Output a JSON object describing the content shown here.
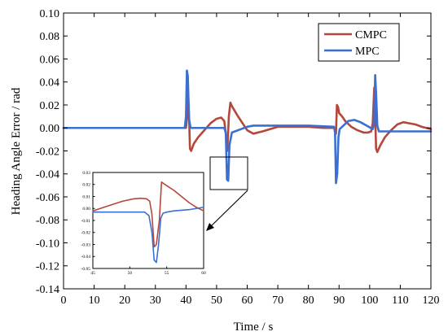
{
  "chart_data": [
    {
      "type": "line",
      "xlabel": "Time / s",
      "ylabel": "Heading Angle Error / rad",
      "xlim": [
        0,
        120
      ],
      "ylim": [
        -0.14,
        0.1
      ],
      "xticks": [
        0,
        10,
        20,
        30,
        40,
        50,
        60,
        70,
        80,
        90,
        100,
        110,
        120
      ],
      "yticks": [
        -0.14,
        -0.12,
        -0.1,
        -0.08,
        -0.06,
        -0.04,
        -0.02,
        0.0,
        0.02,
        0.04,
        0.06,
        0.08,
        0.1
      ],
      "xtick_labels": [
        "0",
        "10",
        "20",
        "30",
        "40",
        "50",
        "60",
        "70",
        "80",
        "90",
        "100",
        "110",
        "120"
      ],
      "ytick_labels": [
        "-0.14",
        "-0.12",
        "-0.10",
        "-0.08",
        "-0.06",
        "-0.04",
        "-0.02",
        "0.00",
        "0.02",
        "0.04",
        "0.06",
        "0.08",
        "0.10"
      ],
      "grid": false,
      "legend": "top-right",
      "series": [
        {
          "name": "CMPC",
          "color": "#b5473a",
          "x": [
            0,
            40,
            40.4,
            40.7,
            41,
            41.3,
            41.7,
            42.5,
            44,
            46,
            48,
            50,
            51.5,
            52.5,
            53,
            53.5,
            54,
            54.5,
            55,
            57,
            59,
            60,
            62,
            65,
            70,
            75,
            80,
            85,
            88.5,
            89,
            89.3,
            89.7,
            90,
            91,
            92,
            94,
            96,
            98,
            99.5,
            100.5,
            101,
            101.5,
            101.8,
            102.1,
            102.5,
            103.5,
            105,
            107,
            109,
            111,
            113,
            115,
            117,
            120
          ],
          "y": [
            0,
            0,
            0.01,
            0.03,
            0.01,
            -0.018,
            -0.02,
            -0.014,
            -0.008,
            -0.002,
            0.004,
            0.008,
            0.009,
            0.006,
            -0.005,
            -0.02,
            0.01,
            0.022,
            0.019,
            0.01,
            0.002,
            -0.002,
            -0.005,
            -0.003,
            0.001,
            0.001,
            0.001,
            0,
            0,
            -0.005,
            0.02,
            0.018,
            0.013,
            0.01,
            0.006,
            0.001,
            -0.002,
            -0.004,
            -0.004,
            -0.003,
            0.004,
            0.035,
            0.01,
            -0.018,
            -0.021,
            -0.015,
            -0.008,
            -0.002,
            0.003,
            0.005,
            0.004,
            0.003,
            0.001,
            -0.001
          ]
        },
        {
          "name": "MPC",
          "color": "#3b6fd1",
          "x": [
            0,
            39.6,
            40,
            40.3,
            40.6,
            41,
            41.5,
            42,
            52.5,
            53,
            53.4,
            53.8,
            54.2,
            55,
            56,
            58,
            60,
            62,
            65,
            70,
            80,
            88.3,
            88.7,
            89,
            89.4,
            89.8,
            90.2,
            91,
            93,
            95,
            97,
            99,
            101,
            101.5,
            101.8,
            102.1,
            102.5,
            103,
            104,
            106,
            110,
            115,
            120
          ],
          "y": [
            0,
            0,
            0.01,
            0.05,
            0.045,
            0.008,
            0,
            0,
            0,
            -0.004,
            -0.045,
            -0.046,
            -0.015,
            -0.004,
            -0.003,
            -0.001,
            0.001,
            0.002,
            0.002,
            0.002,
            0.002,
            0.001,
            -0.004,
            -0.048,
            -0.04,
            -0.008,
            -0.001,
            0.001,
            0.006,
            0.007,
            0.005,
            0.002,
            -0.001,
            0.004,
            0.046,
            0.03,
            0.002,
            -0.003,
            -0.003,
            -0.003,
            -0.003,
            -0.003,
            -0.003
          ]
        }
      ]
    },
    {
      "type": "line",
      "xlim": [
        45,
        60
      ],
      "ylim": [
        -0.05,
        0.03
      ],
      "xticks": [
        45,
        50,
        55,
        60
      ],
      "yticks": [
        -0.05,
        -0.04,
        -0.03,
        -0.02,
        -0.01,
        0.0,
        0.01,
        0.02,
        0.03
      ],
      "xtick_labels": [
        "45",
        "50",
        "55",
        "60"
      ],
      "ytick_labels": [
        "-0.05",
        "-0.04",
        "-0.03",
        "-0.02",
        "-0.01",
        "0.00",
        "0.01",
        "0.02",
        "0.03"
      ],
      "series": [
        {
          "name": "CMPC",
          "color": "#b5473a",
          "x": [
            45,
            47,
            49,
            50.5,
            51.5,
            52.3,
            52.7,
            53,
            53.3,
            53.6,
            54,
            54.3,
            55,
            56,
            57,
            58,
            59,
            60
          ],
          "y": [
            -0.002,
            0.002,
            0.006,
            0.008,
            0.0085,
            0.008,
            0.006,
            -0.005,
            -0.032,
            -0.03,
            -0.01,
            0.022,
            0.019,
            0.015,
            0.01,
            0.005,
            0.001,
            -0.002
          ]
        },
        {
          "name": "MPC",
          "color": "#3b6fd1",
          "x": [
            45,
            48,
            50,
            52,
            52.6,
            53,
            53.3,
            53.6,
            53.9,
            54.2,
            54.5,
            55,
            56,
            58,
            60
          ],
          "y": [
            -0.003,
            -0.003,
            -0.003,
            -0.003,
            -0.006,
            -0.02,
            -0.043,
            -0.045,
            -0.03,
            -0.008,
            -0.004,
            -0.003,
            -0.002,
            -0.001,
            0.001
          ]
        }
      ]
    }
  ]
}
